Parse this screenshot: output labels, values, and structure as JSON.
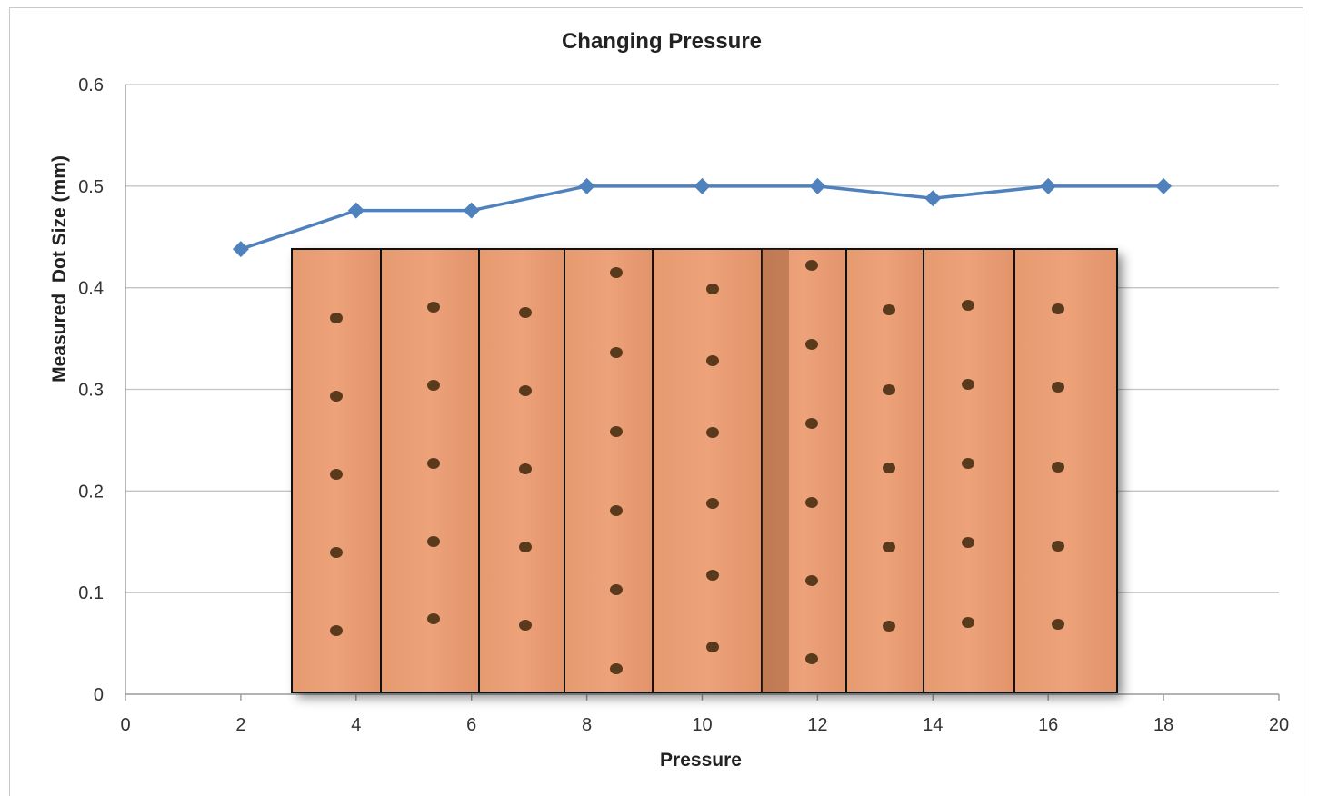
{
  "chart_data": {
    "type": "line",
    "title": "Changing Pressure",
    "xlabel": "Pressure",
    "ylabel": "Measured  Dot Size (mm)",
    "xlim": [
      0,
      20
    ],
    "ylim": [
      0,
      0.6
    ],
    "x_ticks": [
      0,
      2,
      4,
      6,
      8,
      10,
      12,
      14,
      16,
      18,
      20
    ],
    "y_ticks": [
      0,
      0.1,
      0.2,
      0.3,
      0.4,
      0.5,
      0.6
    ],
    "y_tick_labels": [
      "0",
      "0.1",
      "0.2",
      "0.3",
      "0.4",
      "0.5",
      "0.6"
    ],
    "grid": true,
    "legend": "none",
    "series": [
      {
        "color": "#4f81bd",
        "marker": "diamond",
        "x": [
          2,
          4,
          6,
          8,
          10,
          12,
          14,
          16,
          18
        ],
        "y": [
          0.438,
          0.476,
          0.476,
          0.5,
          0.5,
          0.5,
          0.488,
          0.5,
          0.5
        ]
      }
    ],
    "inset_photo": {
      "description_kind": "photo-strips",
      "strip_count": 9,
      "dots_per_strip": [
        5,
        5,
        5,
        6,
        6,
        6,
        5,
        5,
        5
      ],
      "background_color": "#e8976a",
      "dot_color": "#5a3a1c"
    }
  }
}
